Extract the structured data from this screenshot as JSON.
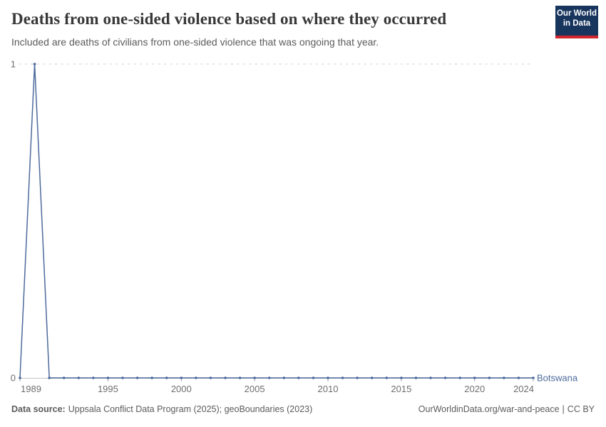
{
  "header": {
    "title": "Deaths from one-sided violence based on where they occurred",
    "subtitle": "Included are deaths of civilians from one-sided violence that was ongoing that year.",
    "logo": {
      "line1": "Our World",
      "line2": "in Data",
      "bg_color": "#18355e",
      "accent_color": "#d2262e"
    }
  },
  "chart_data": {
    "type": "line",
    "title": "Deaths from one-sided violence based on where they occurred",
    "subtitle": "Included are deaths of civilians from one-sided violence that was ongoing that year.",
    "xlabel": "",
    "ylabel": "",
    "x_range": [
      1989,
      2024
    ],
    "ylim": [
      0,
      1
    ],
    "x_ticks": [
      1989,
      1995,
      2000,
      2005,
      2010,
      2015,
      2020,
      2024
    ],
    "y_ticks": [
      0,
      1
    ],
    "grid": "dashed horizontal gridline at top value, solid axis at zero",
    "legend_position": "label at end of line",
    "x": [
      1989,
      1990,
      1991,
      1992,
      1993,
      1994,
      1995,
      1996,
      1997,
      1998,
      1999,
      2000,
      2001,
      2002,
      2003,
      2004,
      2005,
      2006,
      2007,
      2008,
      2009,
      2010,
      2011,
      2012,
      2013,
      2014,
      2015,
      2016,
      2017,
      2018,
      2019,
      2020,
      2021,
      2022,
      2023,
      2024
    ],
    "series": [
      {
        "name": "Botswana",
        "color": "#4c6a9c",
        "values": [
          0,
          1,
          0,
          0,
          0,
          0,
          0,
          0,
          0,
          0,
          0,
          0,
          0,
          0,
          0,
          0,
          0,
          0,
          0,
          0,
          0,
          0,
          0,
          0,
          0,
          0,
          0,
          0,
          0,
          0,
          0,
          0,
          0,
          0,
          0,
          0
        ]
      }
    ],
    "colors": {
      "grid_line": "#d6d6d6",
      "axis_line": "#c4c4c4",
      "tick_mark": "#a8a8a8",
      "tick_text": "#6e6e6e"
    }
  },
  "footer": {
    "source_label": "Data source:",
    "source_text": "Uppsala Conflict Data Program (2025); geoBoundaries (2023)",
    "link_text": "OurWorldinData.org/war-and-peace",
    "separator": "|",
    "license_text": "CC BY"
  }
}
